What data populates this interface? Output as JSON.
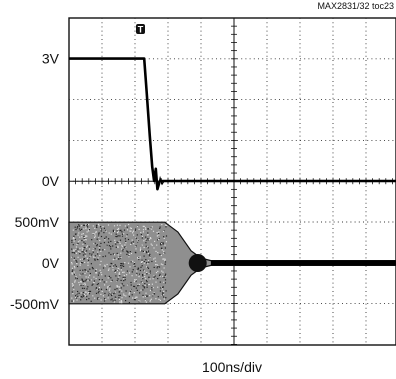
{
  "figure_ref": "MAX2831/32 toc23",
  "chart_data": {
    "type": "line",
    "instrument": "oscilloscope",
    "xlabel": "100ns/div",
    "x_unit": "ns",
    "x_per_div": 100,
    "xlim": [
      0,
      1000
    ],
    "trigger_marker": "T",
    "trigger_x": 275,
    "grid": true,
    "traces": [
      {
        "display": "trace-1",
        "unit": "V",
        "volts_per_div": 1,
        "baseline_label": "0V",
        "tick_labels": [
          "3V",
          "0V"
        ],
        "segments": [
          {
            "x_start": 0,
            "x_end": 228,
            "level": 3.0
          },
          {
            "x_start": 228,
            "x_end": 258,
            "level": "transition 3.0 -> 0.0"
          },
          {
            "x_start": 258,
            "x_end": 1000,
            "level": 0.0
          }
        ],
        "points": [
          {
            "x": 0,
            "y": 3.0
          },
          {
            "x": 228,
            "y": 3.0
          },
          {
            "x": 235,
            "y": 2.2
          },
          {
            "x": 245,
            "y": 1.1
          },
          {
            "x": 252,
            "y": 0.35
          },
          {
            "x": 258,
            "y": 0.0
          },
          {
            "x": 263,
            "y": 0.3
          },
          {
            "x": 268,
            "y": -0.2
          },
          {
            "x": 275,
            "y": 0.0
          },
          {
            "x": 1000,
            "y": 0.0
          }
        ]
      },
      {
        "display": "trace-2",
        "unit": "mV",
        "mv_per_div": 500,
        "baseline_label": "0V",
        "tick_labels": [
          "500mV",
          "0V",
          "-500mV"
        ],
        "envelope": [
          {
            "x": 0,
            "amplitude_mv": 500
          },
          {
            "x": 290,
            "amplitude_mv": 500
          },
          {
            "x": 330,
            "amplitude_mv": 380
          },
          {
            "x": 370,
            "amplitude_mv": 150
          },
          {
            "x": 400,
            "amplitude_mv": 60
          },
          {
            "x": 430,
            "amplitude_mv": 30
          },
          {
            "x": 1000,
            "amplitude_mv": 30
          }
        ]
      }
    ]
  }
}
